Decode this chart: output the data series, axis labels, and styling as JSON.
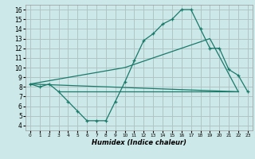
{
  "title": "",
  "xlabel": "Humidex (Indice chaleur)",
  "bg_color": "#cce8e8",
  "grid_color": "#b0c4c4",
  "line_color": "#1a7a6a",
  "xlim": [
    -0.5,
    23.5
  ],
  "ylim": [
    3.5,
    16.5
  ],
  "xticks": [
    0,
    1,
    2,
    3,
    4,
    5,
    6,
    7,
    8,
    9,
    10,
    11,
    12,
    13,
    14,
    15,
    16,
    17,
    18,
    19,
    20,
    21,
    22,
    23
  ],
  "yticks": [
    4,
    5,
    6,
    7,
    8,
    9,
    10,
    11,
    12,
    13,
    14,
    15,
    16
  ],
  "line1_x": [
    0,
    1,
    2,
    3,
    4,
    5,
    6,
    7,
    8,
    9,
    10,
    11,
    12,
    13,
    14,
    15,
    16,
    17,
    18,
    19,
    20,
    21,
    22,
    23
  ],
  "line1_y": [
    8.3,
    8.0,
    8.3,
    7.5,
    6.5,
    5.5,
    4.5,
    4.5,
    4.5,
    6.5,
    8.5,
    10.7,
    12.8,
    13.5,
    14.5,
    15.0,
    16.0,
    16.0,
    14.0,
    12.0,
    12.0,
    9.8,
    9.2,
    7.5
  ],
  "line2_x": [
    0,
    22
  ],
  "line2_y": [
    8.3,
    7.5
  ],
  "line3_x": [
    0,
    10,
    19,
    22
  ],
  "line3_y": [
    8.3,
    10.0,
    13.0,
    7.5
  ],
  "line4_x": [
    3,
    22
  ],
  "line4_y": [
    7.5,
    7.5
  ],
  "xlabel_fontsize": 6,
  "tick_fontsize_x": 4.2,
  "tick_fontsize_y": 5.5
}
